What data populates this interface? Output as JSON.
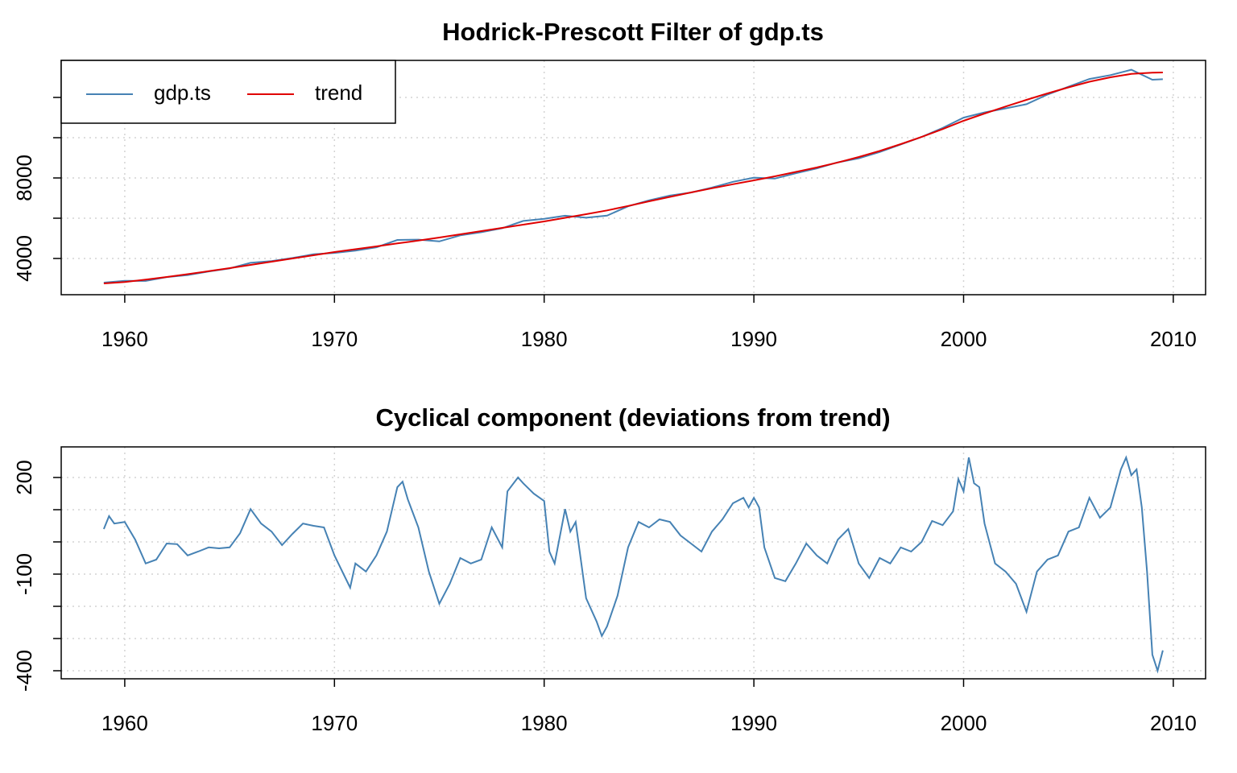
{
  "chart_data": [
    {
      "type": "line",
      "title": "Hodrick-Prescott Filter of gdp.ts",
      "x": [
        1959,
        1960,
        1961,
        1962,
        1963,
        1964,
        1965,
        1966,
        1967,
        1968,
        1969,
        1970,
        1971,
        1972,
        1973,
        1974,
        1975,
        1976,
        1977,
        1978,
        1979,
        1980,
        1981,
        1982,
        1983,
        1984,
        1985,
        1986,
        1987,
        1988,
        1989,
        1990,
        1991,
        1992,
        1993,
        1994,
        1995,
        1996,
        1997,
        1998,
        1999,
        2000,
        2001,
        2002,
        2003,
        2004,
        2005,
        2006,
        2007,
        2008,
        2009,
        2009.5
      ],
      "series": [
        {
          "name": "gdp.ts",
          "color": "#4682b4",
          "values": [
            2800,
            2892,
            2883,
            3075,
            3178,
            3353,
            3503,
            3782,
            3872,
            4025,
            4210,
            4278,
            4393,
            4558,
            4920,
            4935,
            4848,
            5150,
            5305,
            5503,
            5862,
            5967,
            6122,
            6025,
            6128,
            6593,
            6885,
            7122,
            7275,
            7522,
            7810,
            8017,
            7968,
            8233,
            8478,
            8777,
            8973,
            9290,
            9663,
            10040,
            10482,
            10997,
            11257,
            11458,
            11663,
            12145,
            12532,
            12917,
            13107,
            13377,
            12880,
            12903
          ]
        },
        {
          "name": "trend",
          "color": "#e00000",
          "values": [
            2760,
            2830,
            2950,
            3080,
            3220,
            3370,
            3520,
            3680,
            3840,
            4000,
            4160,
            4320,
            4460,
            4600,
            4750,
            4890,
            5040,
            5200,
            5360,
            5520,
            5680,
            5840,
            6020,
            6200,
            6390,
            6610,
            6840,
            7060,
            7280,
            7490,
            7690,
            7880,
            8080,
            8300,
            8520,
            8770,
            9040,
            9340,
            9680,
            10040,
            10430,
            10840,
            11200,
            11550,
            11880,
            12200,
            12500,
            12780,
            13000,
            13170,
            13230,
            13240
          ]
        }
      ],
      "xlim": [
        1956.97,
        2011.54
      ],
      "ylim": [
        2200,
        13840
      ],
      "xticks": [
        1960,
        1970,
        1980,
        1990,
        2000,
        2010
      ],
      "yticks": [
        4000,
        8000
      ],
      "unlabeled_yticks": [
        6000,
        10000,
        12000
      ],
      "grid": true,
      "legend": "top-left"
    },
    {
      "type": "line",
      "title": "Cyclical component (deviations from trend)",
      "x": [
        1959,
        1959.25,
        1959.5,
        1960,
        1960.5,
        1961,
        1961.5,
        1962,
        1962.5,
        1963,
        1963.5,
        1964,
        1964.5,
        1965,
        1965.5,
        1966,
        1966.5,
        1967,
        1967.5,
        1968,
        1968.5,
        1969,
        1969.5,
        1970,
        1970.75,
        1971,
        1971.5,
        1972,
        1972.5,
        1973,
        1973.25,
        1973.5,
        1974,
        1974.5,
        1975,
        1975.5,
        1976,
        1976.5,
        1977,
        1977.5,
        1978,
        1978.25,
        1978.75,
        1979,
        1979.5,
        1980,
        1980.25,
        1980.5,
        1981,
        1981.25,
        1981.5,
        1982,
        1982.5,
        1982.75,
        1983,
        1983.5,
        1984,
        1984.5,
        1985,
        1985.5,
        1986,
        1986.5,
        1987,
        1987.5,
        1988,
        1988.5,
        1989,
        1989.5,
        1989.75,
        1990,
        1990.25,
        1990.5,
        1991,
        1991.5,
        1992,
        1992.5,
        1993,
        1993.5,
        1994,
        1994.5,
        1995,
        1995.5,
        1996,
        1996.5,
        1997,
        1997.5,
        1998,
        1998.5,
        1999,
        1999.5,
        1999.75,
        2000,
        2000.25,
        2000.5,
        2000.75,
        2001,
        2001.5,
        2002,
        2002.5,
        2003,
        2003.5,
        2004,
        2004.5,
        2005,
        2005.5,
        2006,
        2006.5,
        2007,
        2007.5,
        2007.75,
        2008,
        2008.25,
        2008.5,
        2008.75,
        2009,
        2009.25,
        2009.5
      ],
      "values": [
        40,
        80,
        57,
        62,
        7,
        -67,
        -55,
        -5,
        -7,
        -42,
        -30,
        -17,
        -20,
        -17,
        27,
        102,
        57,
        32,
        -10,
        25,
        57,
        50,
        45,
        -42,
        -142,
        -67,
        -92,
        -42,
        32,
        170,
        187,
        132,
        45,
        -92,
        -192,
        -130,
        -50,
        -67,
        -55,
        45,
        -17,
        157,
        200,
        182,
        150,
        127,
        -30,
        -67,
        102,
        32,
        62,
        -175,
        -247,
        -292,
        -262,
        -167,
        -17,
        62,
        45,
        70,
        62,
        20,
        -5,
        -30,
        32,
        70,
        120,
        137,
        107,
        137,
        107,
        -17,
        -112,
        -122,
        -67,
        -5,
        -42,
        -67,
        7,
        40,
        -67,
        -112,
        -50,
        -67,
        -17,
        -30,
        0,
        65,
        52,
        95,
        195,
        157,
        262,
        182,
        170,
        57,
        -67,
        -92,
        -130,
        -217,
        -92,
        -55,
        -42,
        32,
        45,
        137,
        75,
        107,
        225,
        262,
        207,
        225,
        107,
        -92,
        -350,
        -400,
        -337
      ],
      "color": "#4682b4",
      "xlim": [
        1956.97,
        2011.54
      ],
      "ylim": [
        -425,
        295
      ],
      "xticks": [
        1960,
        1970,
        1980,
        1990,
        2000,
        2010
      ],
      "yticks": [
        200,
        -100,
        -400
      ],
      "unlabeled_yticks": [
        100,
        0,
        -200,
        -300
      ],
      "grid": true
    }
  ]
}
